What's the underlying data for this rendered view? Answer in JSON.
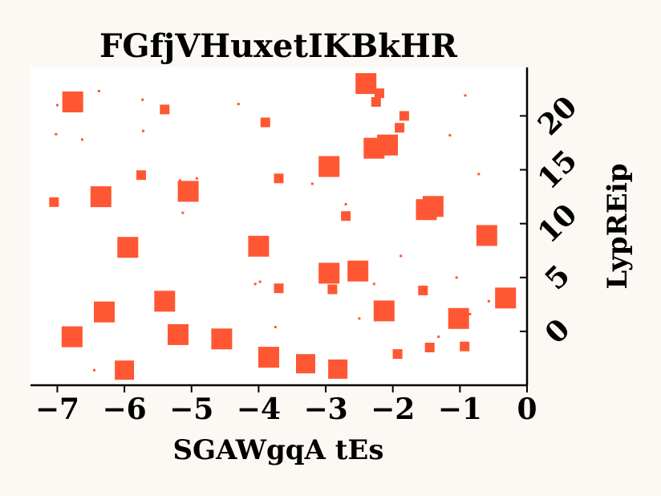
{
  "chart_data": {
    "type": "scatter",
    "title": "FGfjVHuxetIKBkHR",
    "xlabel": "SGAWgqA tEs",
    "ylabel": "LypREip",
    "xlim": [
      -7.4,
      0
    ],
    "ylim": [
      -5,
      24.5
    ],
    "x_ticks": [
      -7,
      -6,
      -5,
      -4,
      -3,
      -2,
      -1,
      0
    ],
    "x_tick_labels": [
      "−7",
      "−6",
      "−5",
      "−4",
      "−3",
      "−2",
      "−1",
      "0"
    ],
    "y_ticks": [
      0,
      5,
      10,
      15,
      20
    ],
    "y_tick_labels": [
      "0",
      "5",
      "10",
      "15",
      "20"
    ],
    "y_axis_position": "right",
    "marker": "square",
    "marker_color": "#ff5733",
    "grid": false,
    "points": [
      {
        "x": -6.77,
        "y": 21.3,
        "size": 26
      },
      {
        "x": -6.35,
        "y": 12.5,
        "size": 26
      },
      {
        "x": -6.3,
        "y": 1.8,
        "size": 26
      },
      {
        "x": -6.78,
        "y": -0.5,
        "size": 26
      },
      {
        "x": -6.0,
        "y": -3.6,
        "size": 24
      },
      {
        "x": -5.95,
        "y": 7.8,
        "size": 26
      },
      {
        "x": -5.4,
        "y": 2.8,
        "size": 26
      },
      {
        "x": -5.2,
        "y": -0.3,
        "size": 26
      },
      {
        "x": -5.05,
        "y": 13.0,
        "size": 26
      },
      {
        "x": -4.55,
        "y": -0.7,
        "size": 26
      },
      {
        "x": -4.0,
        "y": 7.9,
        "size": 26
      },
      {
        "x": -3.85,
        "y": -2.4,
        "size": 26
      },
      {
        "x": -3.3,
        "y": -3.0,
        "size": 24
      },
      {
        "x": -2.95,
        "y": 15.3,
        "size": 26
      },
      {
        "x": -2.95,
        "y": 5.4,
        "size": 26
      },
      {
        "x": -2.82,
        "y": -3.5,
        "size": 24
      },
      {
        "x": -2.52,
        "y": 5.6,
        "size": 26
      },
      {
        "x": -2.4,
        "y": 23.0,
        "size": 26
      },
      {
        "x": -2.28,
        "y": 17.0,
        "size": 26
      },
      {
        "x": -2.08,
        "y": 17.3,
        "size": 26
      },
      {
        "x": -2.13,
        "y": 1.9,
        "size": 26
      },
      {
        "x": -1.5,
        "y": 11.3,
        "size": 26
      },
      {
        "x": -1.4,
        "y": 11.6,
        "size": 26
      },
      {
        "x": -1.02,
        "y": 1.2,
        "size": 26
      },
      {
        "x": -0.6,
        "y": 8.9,
        "size": 26
      },
      {
        "x": -0.32,
        "y": 3.1,
        "size": 26
      },
      {
        "x": -5.4,
        "y": 20.6,
        "size": 12
      },
      {
        "x": -5.75,
        "y": 14.5,
        "size": 12
      },
      {
        "x": -7.05,
        "y": 12.0,
        "size": 12
      },
      {
        "x": -3.9,
        "y": 19.4,
        "size": 12
      },
      {
        "x": -3.7,
        "y": 14.2,
        "size": 12
      },
      {
        "x": -3.7,
        "y": 4.0,
        "size": 12
      },
      {
        "x": -2.9,
        "y": 3.9,
        "size": 12
      },
      {
        "x": -2.7,
        "y": 10.7,
        "size": 12
      },
      {
        "x": -2.2,
        "y": 22.1,
        "size": 12
      },
      {
        "x": -2.25,
        "y": 21.3,
        "size": 12
      },
      {
        "x": -1.83,
        "y": 20.0,
        "size": 12
      },
      {
        "x": -1.9,
        "y": 18.9,
        "size": 12
      },
      {
        "x": -1.93,
        "y": -2.1,
        "size": 12
      },
      {
        "x": -1.55,
        "y": 3.8,
        "size": 12
      },
      {
        "x": -1.45,
        "y": -1.5,
        "size": 12
      },
      {
        "x": -0.93,
        "y": -1.4,
        "size": 12
      },
      {
        "x": -6.38,
        "y": 22.3,
        "size": 3
      },
      {
        "x": -7.0,
        "y": 21.0,
        "size": 3
      },
      {
        "x": -5.73,
        "y": 21.5,
        "size": 3
      },
      {
        "x": -4.3,
        "y": 21.1,
        "size": 3
      },
      {
        "x": -7.02,
        "y": 18.3,
        "size": 3
      },
      {
        "x": -5.72,
        "y": 18.6,
        "size": 3
      },
      {
        "x": -6.63,
        "y": 17.8,
        "size": 3
      },
      {
        "x": -5.17,
        "y": 14.0,
        "size": 3
      },
      {
        "x": -4.92,
        "y": 14.2,
        "size": 3
      },
      {
        "x": -4.95,
        "y": 13.0,
        "size": 3
      },
      {
        "x": -4.93,
        "y": 12.7,
        "size": 3
      },
      {
        "x": -5.13,
        "y": 11.0,
        "size": 3
      },
      {
        "x": -3.2,
        "y": 13.7,
        "size": 3
      },
      {
        "x": -2.7,
        "y": 11.8,
        "size": 3
      },
      {
        "x": -1.88,
        "y": 7.0,
        "size": 3
      },
      {
        "x": -2.28,
        "y": 4.4,
        "size": 3
      },
      {
        "x": -3.98,
        "y": 4.6,
        "size": 3
      },
      {
        "x": -4.05,
        "y": 4.4,
        "size": 3
      },
      {
        "x": -3.75,
        "y": 0.4,
        "size": 3
      },
      {
        "x": -2.5,
        "y": 1.2,
        "size": 3
      },
      {
        "x": -1.05,
        "y": 5.0,
        "size": 3
      },
      {
        "x": -0.85,
        "y": 1.6,
        "size": 3
      },
      {
        "x": -0.57,
        "y": 2.8,
        "size": 3
      },
      {
        "x": -1.15,
        "y": 18.2,
        "size": 3
      },
      {
        "x": -0.92,
        "y": 21.9,
        "size": 3
      },
      {
        "x": -0.72,
        "y": 14.6,
        "size": 3
      },
      {
        "x": -1.32,
        "y": -0.5,
        "size": 3
      },
      {
        "x": -4.45,
        "y": -1.2,
        "size": 3
      },
      {
        "x": -6.45,
        "y": -3.6,
        "size": 3
      },
      {
        "x": -3.4,
        "y": -3.2,
        "size": 3
      }
    ]
  }
}
